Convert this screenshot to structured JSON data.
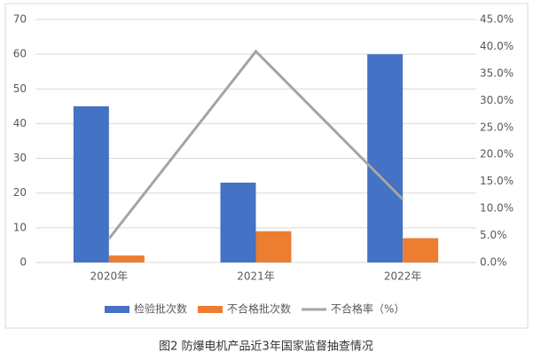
{
  "chart_data": {
    "type": "bar",
    "caption": "图2 防爆电机产品近3年国家监督抽查情况",
    "categories": [
      "2020年",
      "2021年",
      "2022年"
    ],
    "series": [
      {
        "name": "检验批次数",
        "color": "#4472c4",
        "type": "bar",
        "values": [
          45,
          23,
          60
        ]
      },
      {
        "name": "不合格批次数",
        "color": "#ed7d31",
        "type": "bar",
        "values": [
          2,
          9,
          7
        ]
      },
      {
        "name": "不合格率（%）",
        "color": "#a5a5a5",
        "type": "line",
        "axis": "y2",
        "values": [
          4.4,
          39.1,
          11.7
        ]
      }
    ],
    "ylim": [
      0,
      70
    ],
    "yticks": [
      0,
      10,
      20,
      30,
      40,
      50,
      60,
      70
    ],
    "y2lim": [
      0,
      45
    ],
    "y2ticks": [
      {
        "value": 0,
        "label": "0.0%"
      },
      {
        "value": 5,
        "label": "5.0%"
      },
      {
        "value": 10,
        "label": "10.0%"
      },
      {
        "value": 15,
        "label": "15.0%"
      },
      {
        "value": 20,
        "label": "20.0%"
      },
      {
        "value": 25,
        "label": "25.0%"
      },
      {
        "value": 30,
        "label": "30.0%"
      },
      {
        "value": 35,
        "label": "35.0%"
      },
      {
        "value": 40,
        "label": "40.0%"
      },
      {
        "value": 45,
        "label": "45.0%"
      }
    ],
    "grid": true,
    "legend": "bottom"
  }
}
